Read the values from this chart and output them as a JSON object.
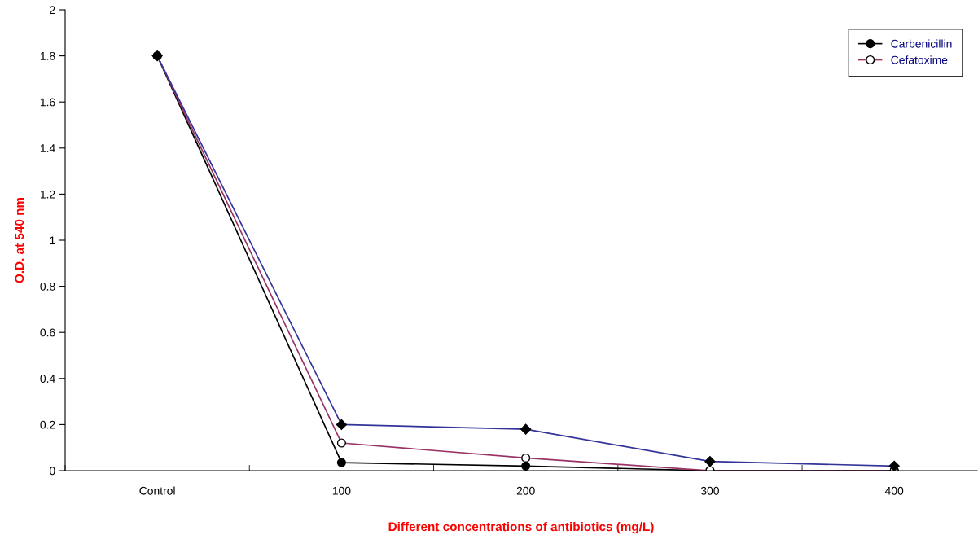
{
  "chart_data": {
    "type": "line",
    "xlabel": "Different concentrations of antibiotics (mg/L)",
    "ylabel": "O.D. at 540 nm",
    "categories": [
      "Control",
      "100",
      "200",
      "300",
      "400"
    ],
    "series": [
      {
        "name": "Carbenicillin",
        "color": "#000000",
        "marker": "circle",
        "values": [
          1.8,
          0.035,
          0.02,
          0,
          0
        ]
      },
      {
        "name": "Cefatoxime",
        "color": "#993366",
        "marker": "open circle",
        "values": [
          1.8,
          0.12,
          0.055,
          0,
          0
        ]
      },
      {
        "color": "#333399",
        "marker": "diamond",
        "values": [
          1.8,
          0.2,
          0.18,
          0.04,
          0.02
        ]
      }
    ],
    "ylim": [
      0,
      2
    ],
    "yticks": [
      0,
      0.2,
      0.4,
      0.6,
      0.8,
      1,
      1.2,
      1.4,
      1.6,
      1.8,
      2
    ],
    "grid": false,
    "legend": "top right",
    "line_style": "solid"
  }
}
